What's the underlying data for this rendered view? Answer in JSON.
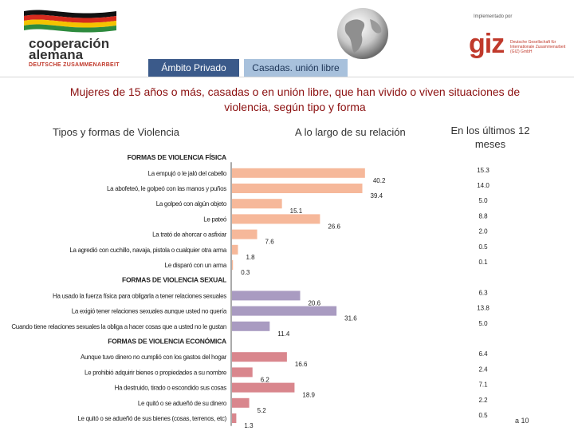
{
  "header": {
    "coop_line1": "cooperación",
    "coop_line2": "alemana",
    "coop_sub": "DEUTSCHE ZUSAMMENARBEIT",
    "implemented_by": "Implementado por",
    "giz_logo": "giz",
    "giz_text": "Deutsche Gesellschaft für Internationale Zusammenarbeit (GIZ) GmbH",
    "tabs": [
      "Ámbito Privado",
      "Casadas. unión libre"
    ],
    "colors": {
      "accent_red": "#8b0f0f",
      "tab_dark": "#3b5a8a",
      "tab_light": "#a8c1dc"
    }
  },
  "title": "Mujeres de 15 años o más, casadas o en unión libre, que han vivido o viven situaciones de violencia, según tipo y forma",
  "columns": {
    "tipos": "Tipos y formas de Violencia",
    "relacion": "A lo largo de su relación",
    "meses": "En los últimos 12 meses"
  },
  "page_number": "a 10",
  "chart_data": {
    "type": "bar",
    "orientation": "horizontal",
    "title": "Mujeres de 15 años o más, casadas o en unión libre, que han vivido o viven situaciones de violencia, según tipo y forma",
    "xlim": [
      0,
      45
    ],
    "series_names": [
      "A lo largo de su relación",
      "En los últimos 12 meses"
    ],
    "groups": [
      {
        "name": "FORMAS DE VIOLENCIA FÍSICA",
        "color": "#f6b89a",
        "items": [
          {
            "label": "La empujó o le jaló del cabello",
            "value": 40.2,
            "last12": "15.3"
          },
          {
            "label": "La abofeteó, le golpeó con las manos y puños",
            "value": 39.4,
            "last12": "14.0"
          },
          {
            "label": "La golpeó con algún objeto",
            "value": 15.1,
            "last12": "5.0"
          },
          {
            "label": "Le pateó",
            "value": 26.6,
            "last12": "8.8"
          },
          {
            "label": "La trató de ahorcar o asfixiar",
            "value": 7.6,
            "last12": "2.0"
          },
          {
            "label": "La agredió con cuchillo, navaja, pistola o cualquier otra arma",
            "value": 1.8,
            "last12": "0.5"
          },
          {
            "label": "Le disparó con un arma",
            "value": 0.3,
            "last12": "0.1"
          }
        ]
      },
      {
        "name": "FORMAS DE VIOLENCIA SEXUAL",
        "color": "#a99bc1",
        "items": [
          {
            "label": "Ha usado la fuerza física para obligarla a tener relaciones sexuales",
            "value": 20.6,
            "last12": "6.3"
          },
          {
            "label": "La exigió tener relaciones sexuales aunque usted no quería",
            "value": 31.6,
            "last12": "13.8"
          },
          {
            "label": "Cuando tiene relaciones sexuales la obliga a hacer cosas que a usted no le gustan",
            "value": 11.4,
            "last12": "5.0"
          }
        ]
      },
      {
        "name": "FORMAS DE VIOLENCIA ECONÓMICA",
        "color": "#d9868d",
        "items": [
          {
            "label": "Aunque tuvo dinero no cumplió con los gastos del hogar",
            "value": 16.6,
            "last12": "6.4"
          },
          {
            "label": "Le prohibió adquirir bienes o propiedades a su nombre",
            "value": 6.2,
            "last12": "2.4"
          },
          {
            "label": "Ha destruido, tirado o escondido sus cosas",
            "value": 18.9,
            "last12": "7.1"
          },
          {
            "label": "Le quitó o se adueñó de su dinero",
            "value": 5.2,
            "last12": "2.2"
          },
          {
            "label": "Le quitó o se adueñó de sus bienes (cosas, terrenos, etc)",
            "value": 1.3,
            "last12": "0.5"
          }
        ]
      }
    ]
  }
}
